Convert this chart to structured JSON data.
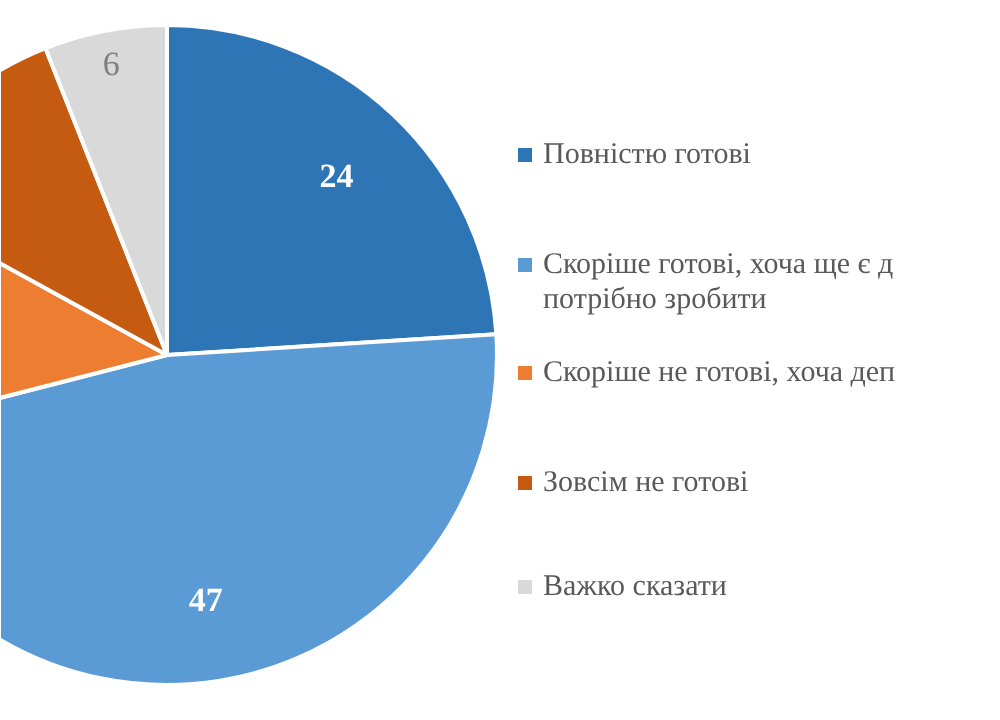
{
  "chart_data": {
    "type": "pie",
    "categories": [
      "Повністю готові",
      "Скоріше готові, хоча ще є д\nпотрібно зробити",
      "Скоріше не готові, хоча деп",
      "Зовсім не готові",
      "Важко сказати"
    ],
    "values": [
      24,
      47,
      12,
      11,
      6
    ],
    "colors": [
      "#2e75b6",
      "#5b9bd5",
      "#ed7d31",
      "#c55a11",
      "#d9d9d9"
    ],
    "value_labels": [
      "24",
      "47",
      null,
      null,
      "6"
    ],
    "legend": "right"
  }
}
